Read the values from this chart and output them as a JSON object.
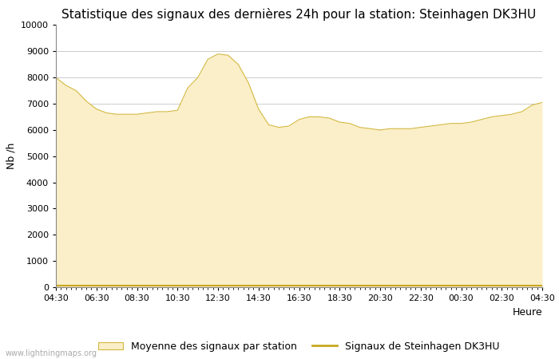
{
  "title": "Statistique des signaux des dernières 24h pour la station: Steinhagen DK3HU",
  "xlabel": "Heure",
  "ylabel": "Nb /h",
  "ylim": [
    0,
    10000
  ],
  "yticks": [
    0,
    1000,
    2000,
    3000,
    4000,
    5000,
    6000,
    7000,
    8000,
    9000,
    10000
  ],
  "xtick_labels": [
    "04:30",
    "06:30",
    "08:30",
    "10:30",
    "12:30",
    "14:30",
    "16:30",
    "18:30",
    "20:30",
    "22:30",
    "00:30",
    "02:30",
    "04:30"
  ],
  "fill_color": "#faefc8",
  "fill_edge_color": "#d4b840",
  "line_color": "#c8a820",
  "background_color": "#ffffff",
  "grid_color": "#cccccc",
  "title_fontsize": 11,
  "axis_label_fontsize": 9,
  "tick_fontsize": 8,
  "watermark": "www.lightningmaps.org",
  "legend_fill_label": "Moyenne des signaux par station",
  "legend_line_label": "Signaux de Steinhagen DK3HU",
  "x_values": [
    0,
    1,
    2,
    3,
    4,
    5,
    6,
    7,
    8,
    9,
    10,
    11,
    12,
    13,
    14,
    15,
    16,
    17,
    18,
    19,
    20,
    21,
    22,
    23,
    24,
    25,
    26,
    27,
    28,
    29,
    30,
    31,
    32,
    33,
    34,
    35,
    36,
    37,
    38,
    39,
    40,
    41,
    42,
    43,
    44,
    45,
    46,
    47,
    48
  ],
  "y_fill": [
    8000,
    7700,
    7500,
    7100,
    6800,
    6650,
    6600,
    6600,
    6600,
    6650,
    6700,
    6700,
    6750,
    7600,
    8000,
    8700,
    8900,
    8850,
    8500,
    7800,
    6800,
    6200,
    6100,
    6150,
    6400,
    6500,
    6500,
    6450,
    6300,
    6250,
    6100,
    6050,
    6000,
    6050,
    6050,
    6050,
    6100,
    6150,
    6200,
    6250,
    6250,
    6300,
    6400,
    6500,
    6550,
    6600,
    6700,
    6950,
    7050
  ],
  "y_line_values": [
    50,
    50,
    50,
    50,
    50,
    50,
    50,
    50,
    50,
    50,
    50,
    50,
    50,
    50,
    50,
    50,
    50,
    50,
    50,
    50,
    50,
    50,
    50,
    50,
    50,
    50,
    50,
    50,
    50,
    50,
    50,
    50,
    50,
    50,
    50,
    50,
    50,
    50,
    50,
    50,
    50,
    50,
    50,
    50,
    50,
    50,
    50,
    50,
    50
  ]
}
